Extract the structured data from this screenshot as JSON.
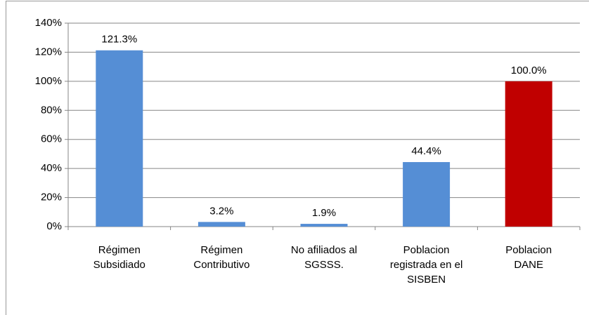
{
  "chart_data": {
    "type": "bar",
    "categories": [
      "Régimen Subsidiado",
      "Régimen Contributivo",
      "No afiliados al SGSSS.",
      "Poblacion registrada en el SISBEN",
      "Poblacion DANE"
    ],
    "values": [
      121.3,
      3.2,
      1.9,
      44.4,
      100.0
    ],
    "value_labels": [
      "121.3%",
      "3.2%",
      "1.9%",
      "44.4%",
      "100.0%"
    ],
    "colors": [
      "#558ed5",
      "#558ed5",
      "#558ed5",
      "#558ed5",
      "#c00000"
    ],
    "ylim": [
      0,
      140
    ],
    "yticks": [
      {
        "value": 0,
        "label": "0%"
      },
      {
        "value": 20,
        "label": "20%"
      },
      {
        "value": 40,
        "label": "40%"
      },
      {
        "value": 60,
        "label": "60%"
      },
      {
        "value": 80,
        "label": "80%"
      },
      {
        "value": 100,
        "label": "100%"
      },
      {
        "value": 120,
        "label": "120%"
      },
      {
        "value": 140,
        "label": "140%"
      }
    ],
    "grid": true
  }
}
